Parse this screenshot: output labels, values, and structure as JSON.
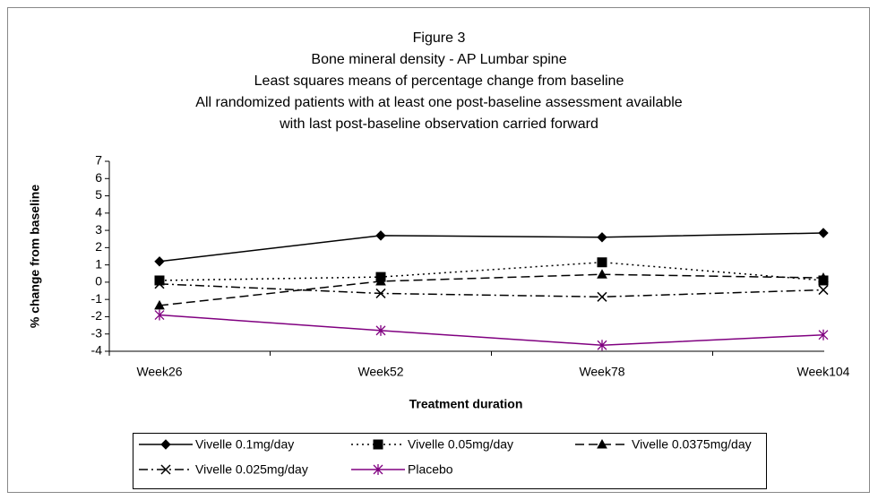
{
  "chart_data": {
    "type": "line",
    "title": [
      "Figure 3",
      "Bone mineral density - AP Lumbar spine",
      "Least squares means of percentage change from baseline",
      "All randomized patients with at least one post-baseline assessment available",
      "with last post-baseline observation carried forward"
    ],
    "x_label": "Treatment duration",
    "y_label": "% change from baseline",
    "categories": [
      "Week26",
      "Week52",
      "Week78",
      "Week104"
    ],
    "ylim": [
      -4,
      7
    ],
    "yticks": [
      -4,
      -3,
      -2,
      -1,
      0,
      1,
      2,
      3,
      4,
      5,
      6,
      7
    ],
    "legend": "bottom",
    "series": [
      {
        "name": "Vivelle 0.1mg/day",
        "color": "#000000",
        "marker": "diamond",
        "dash": "solid",
        "values": [
          1.2,
          2.7,
          2.6,
          2.85
        ]
      },
      {
        "name": "Vivelle 0.05mg/day",
        "color": "#000000",
        "marker": "square",
        "dash": "dotted",
        "values": [
          0.1,
          0.3,
          1.15,
          0.1
        ]
      },
      {
        "name": "Vivelle 0.0375mg/day",
        "color": "#000000",
        "marker": "triangle",
        "dash": "dashed",
        "values": [
          -1.35,
          0.05,
          0.45,
          0.25
        ]
      },
      {
        "name": "Vivelle 0.025mg/day",
        "color": "#000000",
        "marker": "x",
        "dash": "dashdot",
        "values": [
          -0.1,
          -0.65,
          -0.85,
          -0.45
        ]
      },
      {
        "name": "Placebo",
        "color": "#800080",
        "marker": "asterisk",
        "dash": "solid",
        "values": [
          -1.9,
          -2.8,
          -3.65,
          -3.05
        ]
      }
    ]
  }
}
